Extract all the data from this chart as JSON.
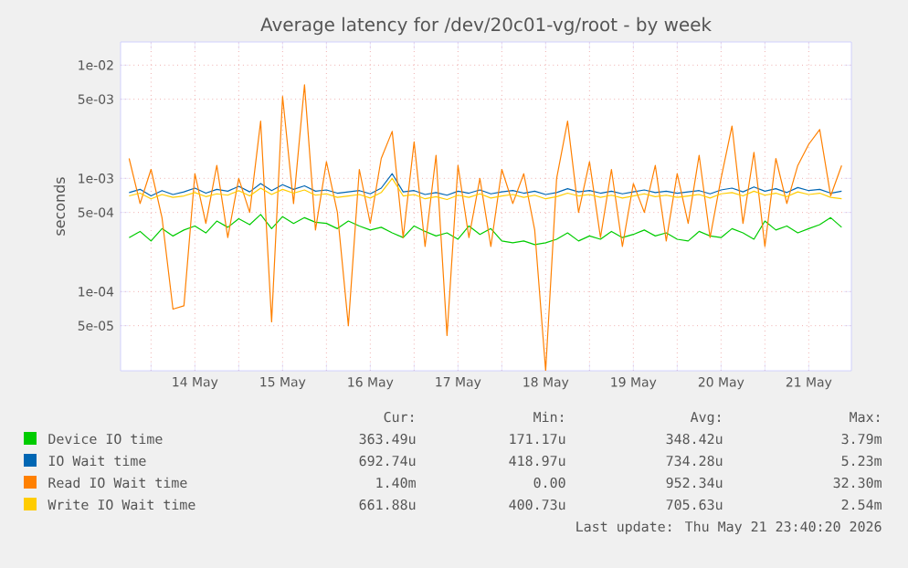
{
  "chart_data": {
    "type": "line",
    "title": "Average latency for /dev/20c01-vg/root - by week",
    "ylabel": "seconds",
    "log": true,
    "grid": true,
    "legend": "bottom",
    "marker": "none",
    "line_style": "solid",
    "xlim": [
      "2026-05-13T15:40",
      "2026-05-21T23:40"
    ],
    "xticks": [
      {
        "value": "2026-05-14T00:00",
        "label": null
      },
      {
        "value": "2026-05-14T12:00",
        "label": "14 May"
      },
      {
        "value": "2026-05-15T00:00",
        "label": null
      },
      {
        "value": "2026-05-15T12:00",
        "label": "15 May"
      },
      {
        "value": "2026-05-16T00:00",
        "label": null
      },
      {
        "value": "2026-05-16T12:00",
        "label": "16 May"
      },
      {
        "value": "2026-05-17T00:00",
        "label": null
      },
      {
        "value": "2026-05-17T12:00",
        "label": "17 May"
      },
      {
        "value": "2026-05-18T00:00",
        "label": null
      },
      {
        "value": "2026-05-18T12:00",
        "label": "18 May"
      },
      {
        "value": "2026-05-19T00:00",
        "label": null
      },
      {
        "value": "2026-05-19T12:00",
        "label": "19 May"
      },
      {
        "value": "2026-05-20T00:00",
        "label": null
      },
      {
        "value": "2026-05-20T12:00",
        "label": "20 May"
      },
      {
        "value": "2026-05-21T00:00",
        "label": null
      },
      {
        "value": "2026-05-21T12:00",
        "label": "21 May"
      }
    ],
    "ylim": [
      2e-05,
      0.016
    ],
    "yticks": [
      {
        "value": 5e-05,
        "label": "5e-05"
      },
      {
        "value": 0.0001,
        "label": "1e-04"
      },
      {
        "value": 0.0005,
        "label": "5e-04"
      },
      {
        "value": 0.001,
        "label": "1e-03"
      },
      {
        "value": 0.005,
        "label": "5e-03"
      },
      {
        "value": 0.01,
        "label": "1e-02"
      }
    ],
    "x": [
      "2026-05-13T18:00",
      "2026-05-13T21:00",
      "2026-05-14T00:00",
      "2026-05-14T03:00",
      "2026-05-14T06:00",
      "2026-05-14T09:00",
      "2026-05-14T12:00",
      "2026-05-14T15:00",
      "2026-05-14T18:00",
      "2026-05-14T21:00",
      "2026-05-15T00:00",
      "2026-05-15T03:00",
      "2026-05-15T06:00",
      "2026-05-15T09:00",
      "2026-05-15T12:00",
      "2026-05-15T15:00",
      "2026-05-15T18:00",
      "2026-05-15T21:00",
      "2026-05-16T00:00",
      "2026-05-16T03:00",
      "2026-05-16T06:00",
      "2026-05-16T09:00",
      "2026-05-16T12:00",
      "2026-05-16T15:00",
      "2026-05-16T18:00",
      "2026-05-16T21:00",
      "2026-05-17T00:00",
      "2026-05-17T03:00",
      "2026-05-17T06:00",
      "2026-05-17T09:00",
      "2026-05-17T12:00",
      "2026-05-17T15:00",
      "2026-05-17T18:00",
      "2026-05-17T21:00",
      "2026-05-18T00:00",
      "2026-05-18T03:00",
      "2026-05-18T06:00",
      "2026-05-18T09:00",
      "2026-05-18T12:00",
      "2026-05-18T15:00",
      "2026-05-18T18:00",
      "2026-05-18T21:00",
      "2026-05-19T00:00",
      "2026-05-19T03:00",
      "2026-05-19T06:00",
      "2026-05-19T09:00",
      "2026-05-19T12:00",
      "2026-05-19T15:00",
      "2026-05-19T18:00",
      "2026-05-19T21:00",
      "2026-05-20T00:00",
      "2026-05-20T03:00",
      "2026-05-20T06:00",
      "2026-05-20T09:00",
      "2026-05-20T12:00",
      "2026-05-20T15:00",
      "2026-05-20T18:00",
      "2026-05-20T21:00",
      "2026-05-21T00:00",
      "2026-05-21T03:00",
      "2026-05-21T06:00",
      "2026-05-21T09:00",
      "2026-05-21T12:00",
      "2026-05-21T15:00",
      "2026-05-21T18:00",
      "2026-05-21T21:00"
    ],
    "series": [
      {
        "name": "Device IO time",
        "color": "#00cc00",
        "values": [
          0.0003,
          0.00034,
          0.00028,
          0.00036,
          0.00031,
          0.00035,
          0.00038,
          0.00033,
          0.00042,
          0.00037,
          0.00044,
          0.00039,
          0.00048,
          0.00036,
          0.00046,
          0.0004,
          0.00045,
          0.00041,
          0.0004,
          0.00036,
          0.00042,
          0.00038,
          0.00035,
          0.00037,
          0.00033,
          0.0003,
          0.00038,
          0.00034,
          0.00031,
          0.00033,
          0.00029,
          0.00038,
          0.00032,
          0.00036,
          0.00028,
          0.00027,
          0.00028,
          0.00026,
          0.00027,
          0.00029,
          0.00033,
          0.00028,
          0.00031,
          0.00029,
          0.00034,
          0.0003,
          0.00032,
          0.00035,
          0.00031,
          0.00033,
          0.00029,
          0.00028,
          0.00034,
          0.00031,
          0.0003,
          0.00036,
          0.00033,
          0.00029,
          0.00042,
          0.00035,
          0.00038,
          0.00033,
          0.00036,
          0.00039,
          0.00045,
          0.00037
        ]
      },
      {
        "name": "IO Wait time",
        "color": "#0066b3",
        "values": [
          0.00075,
          0.0008,
          0.0007,
          0.00078,
          0.00072,
          0.00076,
          0.00082,
          0.00074,
          0.0008,
          0.00077,
          0.00085,
          0.00076,
          0.0009,
          0.00078,
          0.00088,
          0.0008,
          0.00086,
          0.00077,
          0.00079,
          0.00074,
          0.00076,
          0.00078,
          0.00073,
          0.00082,
          0.0011,
          0.00076,
          0.00078,
          0.00072,
          0.00075,
          0.00071,
          0.00077,
          0.00074,
          0.00079,
          0.00073,
          0.00076,
          0.00078,
          0.00074,
          0.00077,
          0.00072,
          0.00075,
          0.00081,
          0.00076,
          0.00078,
          0.00074,
          0.00077,
          0.00073,
          0.00076,
          0.00079,
          0.00075,
          0.00077,
          0.00074,
          0.00076,
          0.00078,
          0.00073,
          0.00079,
          0.00082,
          0.00076,
          0.00084,
          0.00077,
          0.00081,
          0.00075,
          0.00083,
          0.00078,
          0.0008,
          0.00074,
          0.00077
        ]
      },
      {
        "name": "Read IO Wait time",
        "color": "#ff8000",
        "values": [
          0.0015,
          0.0006,
          0.0012,
          0.00045,
          7e-05,
          7.5e-05,
          0.0011,
          0.0004,
          0.0013,
          0.0003,
          0.001,
          0.0005,
          0.0032,
          5.4e-05,
          0.0053,
          0.0006,
          0.0067,
          0.00035,
          0.0014,
          0.0005,
          5e-05,
          0.0012,
          0.0004,
          0.0015,
          0.0026,
          0.0003,
          0.0021,
          0.00025,
          0.0016,
          4.1e-05,
          0.0013,
          0.0003,
          0.001,
          0.00025,
          0.0012,
          0.0006,
          0.0011,
          0.00035,
          2e-05,
          0.001,
          0.0032,
          0.0005,
          0.0014,
          0.0003,
          0.0012,
          0.00025,
          0.0009,
          0.0005,
          0.0013,
          0.00028,
          0.0011,
          0.0004,
          0.0016,
          0.0003,
          0.001,
          0.0029,
          0.0004,
          0.0017,
          0.00025,
          0.0015,
          0.0006,
          0.0013,
          0.002,
          0.0027,
          0.0007,
          0.0013
        ]
      },
      {
        "name": "Write IO Wait time",
        "color": "#ffcc00",
        "values": [
          0.0007,
          0.00074,
          0.00066,
          0.00072,
          0.00068,
          0.0007,
          0.00075,
          0.00069,
          0.00073,
          0.00071,
          0.00078,
          0.0007,
          0.00082,
          0.00072,
          0.0008,
          0.00074,
          0.00079,
          0.00071,
          0.00073,
          0.00068,
          0.0007,
          0.00072,
          0.00067,
          0.00075,
          0.001,
          0.0007,
          0.00072,
          0.00066,
          0.00069,
          0.00065,
          0.00071,
          0.00068,
          0.00073,
          0.00067,
          0.0007,
          0.00072,
          0.00068,
          0.00071,
          0.00066,
          0.00069,
          0.00074,
          0.0007,
          0.00072,
          0.00068,
          0.00071,
          0.00067,
          0.0007,
          0.00073,
          0.00069,
          0.00071,
          0.00068,
          0.0007,
          0.00072,
          0.00067,
          0.00073,
          0.00075,
          0.0007,
          0.00077,
          0.00071,
          0.00074,
          0.00069,
          0.00076,
          0.00072,
          0.00074,
          0.00068,
          0.00066
        ]
      }
    ],
    "annotations": [
      "Cur:",
      "Min:",
      "Avg:",
      "Max:",
      "363.49u",
      "171.17u",
      "348.42u",
      "3.79m",
      "692.74u",
      "418.97u",
      "734.28u",
      "5.23m",
      "1.40m",
      "0.00",
      "952.34u",
      "32.30m",
      "661.88u",
      "400.73u",
      "705.63u",
      "2.54m",
      "Last update: Thu May 21 23:40:20 2026"
    ]
  }
}
